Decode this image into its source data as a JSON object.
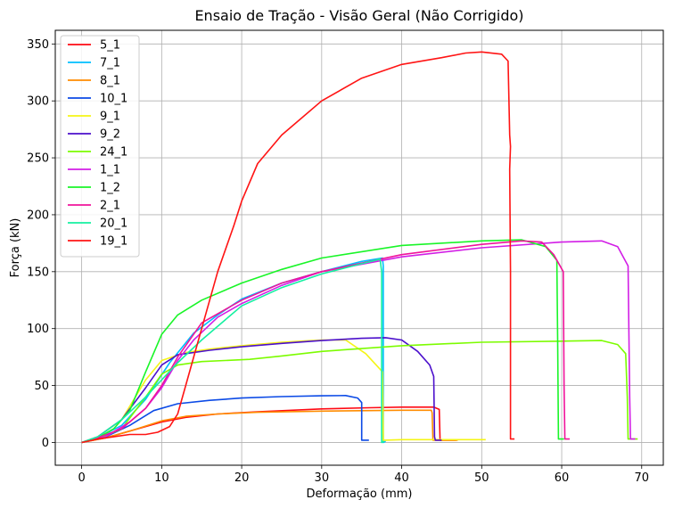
{
  "chart_data": {
    "type": "line",
    "title": "Ensaio de Tração - Visão Geral (Não Corrigido)",
    "xlabel": "Deformação (mm)",
    "ylabel": "Força (kN)",
    "xlim": [
      -3.3,
      72.7
    ],
    "ylim": [
      -20,
      362
    ],
    "xticks": [
      0,
      10,
      20,
      30,
      40,
      50,
      60,
      70
    ],
    "yticks": [
      0,
      50,
      100,
      150,
      200,
      250,
      300,
      350
    ],
    "grid": true,
    "legend_position": "top-left",
    "series": [
      {
        "name": "5_1",
        "color": "#ff0a14",
        "x": [
          0,
          3,
          6,
          10,
          13,
          17,
          22,
          30,
          36,
          40,
          44,
          44.7,
          44.8,
          45.2,
          46.8
        ],
        "y": [
          0,
          4,
          10,
          18,
          22,
          25,
          27,
          29.5,
          30.5,
          31,
          31,
          29,
          2,
          2,
          2
        ]
      },
      {
        "name": "7_1",
        "color": "#00bfff",
        "x": [
          0,
          2,
          5,
          8,
          11,
          14,
          17,
          20,
          25,
          30,
          35,
          37.6,
          37.7,
          37.7,
          38.0
        ],
        "y": [
          0,
          4,
          15,
          38,
          70,
          96,
          112,
          126,
          140,
          150,
          159,
          162,
          155,
          0,
          1
        ]
      },
      {
        "name": "8_1",
        "color": "#ff8c00",
        "x": [
          0,
          3,
          6,
          10,
          13,
          17,
          22,
          30,
          36,
          40,
          43.7,
          43.8,
          43.9,
          47
        ],
        "y": [
          0,
          4,
          10,
          19,
          23,
          25,
          26.5,
          27.5,
          28,
          28.3,
          28.3,
          26,
          2,
          2
        ]
      },
      {
        "name": "10_1",
        "color": "#0b4ae6",
        "x": [
          0,
          3,
          6,
          9,
          12,
          16,
          20,
          25,
          30,
          33,
          34.5,
          35.0,
          35.0,
          35.2,
          35.9
        ],
        "y": [
          0,
          5,
          15,
          28,
          34,
          37,
          39,
          40.3,
          41,
          41.2,
          39,
          35,
          2,
          2,
          2
        ]
      },
      {
        "name": "9_1",
        "color": "#f5f516",
        "x": [
          0,
          2,
          5,
          8,
          10,
          13,
          16,
          20,
          25,
          30,
          33,
          35.5,
          37.6,
          37.7,
          37.8,
          40,
          45,
          50.5
        ],
        "y": [
          0,
          5,
          20,
          55,
          72,
          79,
          82,
          85,
          88,
          90,
          90,
          78,
          62,
          2,
          2,
          2.5,
          2.5,
          2.5
        ]
      },
      {
        "name": "9_2",
        "color": "#4b0fcc",
        "x": [
          0,
          2,
          5,
          8,
          10,
          12,
          16,
          20,
          25,
          30,
          35,
          38,
          40,
          42,
          43.5,
          44.0,
          44.1,
          44.2,
          45.0
        ],
        "y": [
          0,
          5,
          20,
          48,
          68,
          77,
          81,
          84,
          87,
          89.5,
          91.5,
          92,
          90,
          80,
          68,
          58,
          5,
          2,
          2
        ]
      },
      {
        "name": "24_1",
        "color": "#7cfc00",
        "x": [
          0,
          2,
          5,
          8,
          10,
          12,
          15,
          21,
          25,
          30,
          40,
          50,
          60,
          65,
          67,
          68.0,
          68.2,
          68.3,
          69.5
        ],
        "y": [
          0,
          3,
          12,
          40,
          60,
          68,
          71,
          73,
          76,
          80,
          85,
          88,
          89,
          89.5,
          86,
          78,
          40,
          3,
          3
        ]
      },
      {
        "name": "1_1",
        "color": "#d21ee6",
        "x": [
          0,
          3,
          6,
          8,
          10,
          12,
          14,
          17,
          20,
          25,
          30,
          40,
          50,
          60,
          65,
          67,
          68.3,
          68.5,
          68.6,
          69.2
        ],
        "y": [
          0,
          5,
          18,
          30,
          48,
          72,
          90,
          110,
          122,
          138,
          150,
          163,
          171,
          176,
          177,
          172,
          155,
          40,
          3,
          3
        ]
      },
      {
        "name": "1_2",
        "color": "#19f528",
        "x": [
          0,
          2,
          4,
          6,
          8,
          10,
          12,
          15,
          20,
          25,
          30,
          40,
          50,
          55,
          58,
          59.4,
          59.5,
          59.6,
          60.3
        ],
        "y": [
          0,
          4,
          12,
          28,
          62,
          95,
          112,
          125,
          140,
          152,
          162,
          173,
          177,
          178,
          172,
          160,
          90,
          3,
          3
        ]
      },
      {
        "name": "2_1",
        "color": "#f0149b",
        "x": [
          0,
          2,
          5,
          8,
          10,
          12,
          15,
          20,
          25,
          30,
          40,
          50,
          55,
          57.5,
          59,
          60.2,
          60.3,
          60.4,
          61
        ],
        "y": [
          0,
          4,
          12,
          30,
          50,
          75,
          105,
          125,
          140,
          150,
          165,
          174,
          177,
          176,
          165,
          150,
          50,
          3,
          3
        ]
      },
      {
        "name": "20_1",
        "color": "#14f0a0",
        "x": [
          0,
          2,
          5,
          8,
          10,
          12,
          15,
          18,
          20,
          25,
          30,
          35,
          37.3,
          37.5,
          37.5,
          37.8
        ],
        "y": [
          0,
          5,
          20,
          40,
          55,
          70,
          90,
          108,
          120,
          136,
          148,
          157,
          161,
          150,
          0,
          1
        ]
      },
      {
        "name": "19_1",
        "color": "#ff1414",
        "x": [
          0,
          2,
          4,
          6,
          8,
          9.5,
          11,
          12,
          13,
          15,
          17,
          19,
          20,
          22,
          25,
          30,
          35,
          40,
          45,
          48,
          50,
          52.5,
          53.3,
          53.5,
          53.6,
          53.5,
          53.6,
          53.6,
          54.1
        ],
        "y": [
          0,
          3,
          5,
          7,
          7,
          9,
          14,
          25,
          50,
          100,
          150,
          190,
          212,
          245,
          270,
          300,
          320,
          332,
          338,
          342,
          343,
          341,
          335,
          270,
          260,
          240,
          150,
          3,
          3
        ]
      }
    ]
  }
}
